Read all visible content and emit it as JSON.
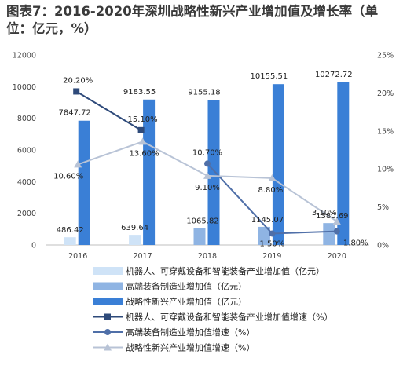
{
  "chart_data": {
    "type": "bar",
    "title": "图表7：2016-2020年深圳战略性新兴产业增加值及增长率（单位：亿元，%）",
    "categories": [
      "2016",
      "2017",
      "2018",
      "2019",
      "2020"
    ],
    "y_left_ticks": [
      "0",
      "2000",
      "4000",
      "6000",
      "8000",
      "10000",
      "12000"
    ],
    "y_left_range": [
      0,
      12000
    ],
    "y_right_ticks": [
      "0%",
      "5%",
      "10%",
      "15%",
      "20%",
      "25%"
    ],
    "y_right_range": [
      0,
      25
    ],
    "bar_series": [
      {
        "name": "机器人、可穿戴设备和智能装备产业增加值（亿元）",
        "color": "#cfe3f7",
        "values": [
          486.42,
          639.64,
          null,
          null,
          null
        ],
        "labels": [
          "486.42",
          "639.64",
          "",
          "",
          ""
        ]
      },
      {
        "name": "高端装备制造业增加值（亿元）",
        "color": "#8fb4e3",
        "values": [
          null,
          null,
          1065.82,
          1145.07,
          1380.69
        ],
        "labels": [
          "",
          "",
          "1065.82",
          "1145.07",
          "1380.69"
        ]
      },
      {
        "name": "战略性新兴产业增加值（亿元）",
        "color": "#3a7fd6",
        "values": [
          7847.72,
          9183.55,
          9155.18,
          10155.51,
          10272.72
        ],
        "labels": [
          "7847.72",
          "9183.55",
          "9155.18",
          "10155.51",
          "10272.72"
        ]
      }
    ],
    "line_series": [
      {
        "name": "机器人、可穿戴设备和智能装备产业增加值增速（%）",
        "color": "#2e4a7a",
        "marker": "square",
        "values": [
          20.2,
          15.1,
          null,
          null,
          null
        ],
        "labels": [
          "20.20%",
          "15.10%",
          "",
          "",
          ""
        ]
      },
      {
        "name": "高端装备制造业增加值增速（%）",
        "color": "#4f6fa8",
        "marker": "circle",
        "values": [
          null,
          null,
          10.7,
          1.5,
          1.8
        ],
        "labels": [
          "",
          "",
          "10.70%",
          "1.50%",
          "1.80%"
        ]
      },
      {
        "name": "战略性新兴产业增加值增速（%）",
        "color": "#b8c3d6",
        "marker": "triangle",
        "values": [
          10.6,
          13.6,
          9.1,
          8.8,
          3.1
        ],
        "labels": [
          "10.60%",
          "13.60%",
          "9.10%",
          "8.80%",
          "3.10%"
        ]
      }
    ],
    "grid": false,
    "legend_placement": "bottom"
  }
}
